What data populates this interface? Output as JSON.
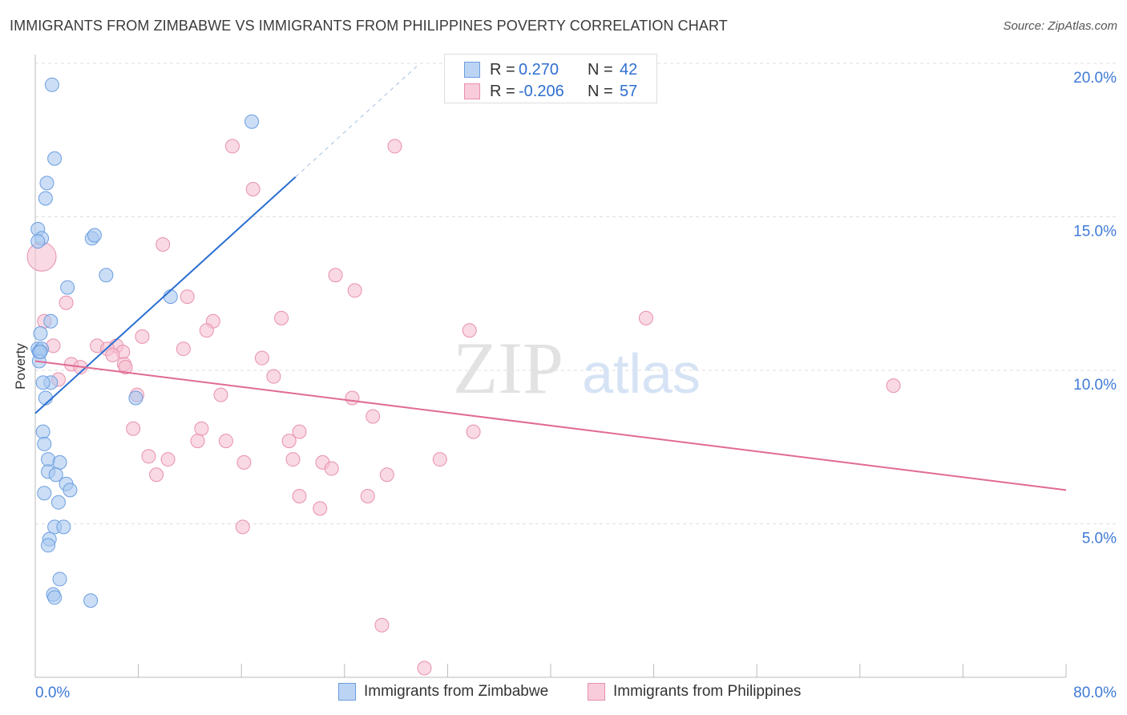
{
  "title": "IMMIGRANTS FROM ZIMBABWE VS IMMIGRANTS FROM PHILIPPINES POVERTY CORRELATION CHART",
  "source": "Source: ZipAtlas.com",
  "watermark": {
    "zip": "ZIP",
    "atlas": "atlas"
  },
  "legend": {
    "r_label": "R =",
    "n_label": "N =",
    "rows": [
      {
        "r": "0.270",
        "n": "42"
      },
      {
        "r": "-0.206",
        "n": "57"
      }
    ]
  },
  "colors": {
    "zimbabwe_fill": "#a9c8f0",
    "zimbabwe_stroke": "#6b9ee0",
    "zimbabwe_line": "#2a6fd1",
    "philippines_fill": "#f5bfd0",
    "philippines_stroke": "#e890ae",
    "philippines_line": "#e06a93",
    "tick_label": "#3f7ad6",
    "grid": "#dddddd"
  },
  "chart_data": {
    "type": "scatter",
    "title": "IMMIGRANTS FROM ZIMBABWE VS IMMIGRANTS FROM PHILIPPINES POVERTY CORRELATION CHART",
    "xlabel": "",
    "ylabel": "Poverty",
    "xlim": [
      0,
      80
    ],
    "ylim": [
      0,
      20
    ],
    "x_tick_labels": [
      "0.0%",
      "80.0%"
    ],
    "y_ticks": [
      5,
      10,
      15,
      20
    ],
    "y_tick_labels": [
      "5.0%",
      "10.0%",
      "15.0%",
      "20.0%"
    ],
    "grid": true,
    "series": [
      {
        "name": "Immigrants from Zimbabwe",
        "r": 0.27,
        "n": 42,
        "trend": {
          "x0": 0,
          "y0": 8.6,
          "x1": 20.2,
          "y1": 16.3,
          "dashed_to": {
            "x": 29.6,
            "y": 19.9
          }
        },
        "points": [
          [
            1.3,
            19.3
          ],
          [
            16.8,
            18.1
          ],
          [
            1.5,
            16.9
          ],
          [
            0.9,
            16.1
          ],
          [
            0.8,
            15.6
          ],
          [
            0.2,
            14.6
          ],
          [
            0.5,
            14.3
          ],
          [
            4.4,
            14.3
          ],
          [
            4.6,
            14.4
          ],
          [
            5.5,
            13.1
          ],
          [
            2.5,
            12.7
          ],
          [
            10.5,
            12.4
          ],
          [
            1.2,
            11.6
          ],
          [
            0.4,
            11.2
          ],
          [
            0.2,
            10.7
          ],
          [
            0.5,
            10.7
          ],
          [
            0.3,
            10.6
          ],
          [
            0.3,
            10.3
          ],
          [
            1.2,
            9.6
          ],
          [
            0.6,
            9.6
          ],
          [
            0.8,
            9.1
          ],
          [
            7.8,
            9.1
          ],
          [
            0.6,
            8.0
          ],
          [
            0.7,
            7.6
          ],
          [
            1.0,
            7.1
          ],
          [
            1.9,
            7.0
          ],
          [
            1.0,
            6.7
          ],
          [
            1.6,
            6.6
          ],
          [
            2.4,
            6.3
          ],
          [
            2.7,
            6.1
          ],
          [
            0.7,
            6.0
          ],
          [
            1.8,
            5.7
          ],
          [
            1.5,
            4.9
          ],
          [
            2.2,
            4.9
          ],
          [
            1.1,
            4.5
          ],
          [
            1.0,
            4.3
          ],
          [
            1.9,
            3.2
          ],
          [
            1.4,
            2.7
          ],
          [
            1.5,
            2.6
          ],
          [
            4.3,
            2.5
          ],
          [
            0.4,
            10.6
          ],
          [
            0.2,
            14.2
          ]
        ]
      },
      {
        "name": "Immigrants from Philippines",
        "r": -0.206,
        "n": 57,
        "trend": {
          "x0": 0,
          "y0": 10.3,
          "x1": 80,
          "y1": 6.1
        },
        "points": [
          [
            0.5,
            13.7
          ],
          [
            15.3,
            17.3
          ],
          [
            27.9,
            17.3
          ],
          [
            16.9,
            15.9
          ],
          [
            9.9,
            14.1
          ],
          [
            23.3,
            13.1
          ],
          [
            24.8,
            12.6
          ],
          [
            2.4,
            12.2
          ],
          [
            11.8,
            12.4
          ],
          [
            19.1,
            11.7
          ],
          [
            47.4,
            11.7
          ],
          [
            0.7,
            11.6
          ],
          [
            13.8,
            11.6
          ],
          [
            33.7,
            11.3
          ],
          [
            13.3,
            11.3
          ],
          [
            8.3,
            11.1
          ],
          [
            1.4,
            10.8
          ],
          [
            4.8,
            10.8
          ],
          [
            6.3,
            10.8
          ],
          [
            11.5,
            10.7
          ],
          [
            5.6,
            10.7
          ],
          [
            6.8,
            10.6
          ],
          [
            6.0,
            10.5
          ],
          [
            17.6,
            10.4
          ],
          [
            2.8,
            10.2
          ],
          [
            3.5,
            10.1
          ],
          [
            6.9,
            10.2
          ],
          [
            7.0,
            10.1
          ],
          [
            1.8,
            9.7
          ],
          [
            18.5,
            9.8
          ],
          [
            66.6,
            9.5
          ],
          [
            7.9,
            9.2
          ],
          [
            14.4,
            9.2
          ],
          [
            24.6,
            9.1
          ],
          [
            26.2,
            8.5
          ],
          [
            7.6,
            8.1
          ],
          [
            12.9,
            8.1
          ],
          [
            20.5,
            8.0
          ],
          [
            34.0,
            8.0
          ],
          [
            12.6,
            7.7
          ],
          [
            14.8,
            7.7
          ],
          [
            19.7,
            7.7
          ],
          [
            8.8,
            7.2
          ],
          [
            10.3,
            7.1
          ],
          [
            20.0,
            7.1
          ],
          [
            31.4,
            7.1
          ],
          [
            16.2,
            7.0
          ],
          [
            22.3,
            7.0
          ],
          [
            23.0,
            6.8
          ],
          [
            9.4,
            6.6
          ],
          [
            27.3,
            6.6
          ],
          [
            20.5,
            5.9
          ],
          [
            25.8,
            5.9
          ],
          [
            22.1,
            5.5
          ],
          [
            16.1,
            4.9
          ],
          [
            26.9,
            1.7
          ],
          [
            30.2,
            0.3
          ]
        ]
      }
    ]
  }
}
